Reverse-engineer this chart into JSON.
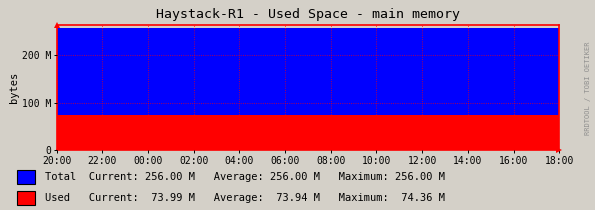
{
  "title": "Haystack-R1 - Used Space - main memory",
  "ylabel": "bytes",
  "bg_color": "#d4d0c8",
  "plot_bg_color": "#d4d0c8",
  "total_value": 268435456,
  "used_value": 77594419,
  "x_labels": [
    "20:00",
    "22:00",
    "00:00",
    "02:00",
    "04:00",
    "06:00",
    "08:00",
    "10:00",
    "12:00",
    "14:00",
    "16:00",
    "18:00"
  ],
  "yticks": [
    0,
    104857600,
    209715200
  ],
  "ytick_labels": [
    "0",
    "100 M",
    "200 M"
  ],
  "ymax": 275000000,
  "color_total": "#0000ff",
  "color_used": "#ff0000",
  "grid_color": "#ff0000",
  "axis_color": "#ff0000",
  "title_color": "#000000",
  "legend": [
    {
      "label": "Total",
      "color": "#0000ff",
      "current": "256.00 M",
      "average": "256.00 M",
      "maximum": "256.00 M"
    },
    {
      "label": "Used",
      "color": "#ff0000",
      "current": "73.99 M",
      "average": "73.94 M",
      "maximum": "74.36 M"
    }
  ],
  "watermark": "RRDTOOL / TOBI OETIKER",
  "font_mono": "DejaVu Sans Mono",
  "title_fontsize": 9.5,
  "tick_fontsize": 7.0,
  "legend_fontsize": 7.5
}
